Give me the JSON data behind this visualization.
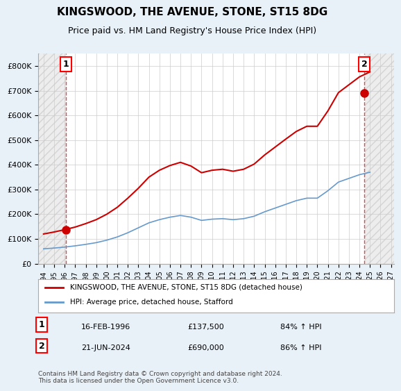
{
  "title": "KINGSWOOD, THE AVENUE, STONE, ST15 8DG",
  "subtitle": "Price paid vs. HM Land Registry's House Price Index (HPI)",
  "legend_line1": "KINGSWOOD, THE AVENUE, STONE, ST15 8DG (detached house)",
  "legend_line2": "HPI: Average price, detached house, Stafford",
  "annotation1_label": "1",
  "annotation1_date": "16-FEB-1996",
  "annotation1_price": "£137,500",
  "annotation1_hpi": "84% ↑ HPI",
  "annotation2_label": "2",
  "annotation2_date": "21-JUN-2024",
  "annotation2_price": "£690,000",
  "annotation2_hpi": "86% ↑ HPI",
  "footer": "Contains HM Land Registry data © Crown copyright and database right 2024.\nThis data is licensed under the Open Government Licence v3.0.",
  "red_line_color": "#cc0000",
  "blue_line_color": "#6699cc",
  "hatch_color": "#cccccc",
  "background_color": "#e8f0f8",
  "plot_bg_color": "#ffffff",
  "ylim": [
    0,
    850000
  ],
  "yticks": [
    0,
    100000,
    200000,
    300000,
    400000,
    500000,
    600000,
    700000,
    800000
  ],
  "ytick_labels": [
    "£0",
    "£100K",
    "£200K",
    "£300K",
    "£400K",
    "£500K",
    "£600K",
    "£700K",
    "£800K"
  ],
  "xmin_year": 1994,
  "xmax_year": 2027,
  "xticks": [
    1994,
    1995,
    1996,
    1997,
    1998,
    1999,
    2000,
    2001,
    2002,
    2003,
    2004,
    2005,
    2006,
    2007,
    2008,
    2009,
    2010,
    2011,
    2012,
    2013,
    2014,
    2015,
    2016,
    2017,
    2018,
    2019,
    2020,
    2021,
    2022,
    2023,
    2024,
    2025,
    2026,
    2027
  ],
  "sale1_year": 1996.12,
  "sale1_price": 137500,
  "sale2_year": 2024.47,
  "sale2_price": 690000,
  "hpi_years": [
    1994,
    1995,
    1996,
    1997,
    1998,
    1999,
    2000,
    2001,
    2002,
    2003,
    2004,
    2005,
    2006,
    2007,
    2008,
    2009,
    2010,
    2011,
    2012,
    2013,
    2014,
    2015,
    2016,
    2017,
    2018,
    2019,
    2020,
    2021,
    2022,
    2023,
    2024,
    2025
  ],
  "hpi_values": [
    60000,
    63000,
    67000,
    72000,
    78000,
    85000,
    95000,
    108000,
    125000,
    145000,
    165000,
    178000,
    188000,
    195000,
    188000,
    175000,
    180000,
    182000,
    178000,
    182000,
    192000,
    210000,
    225000,
    240000,
    255000,
    265000,
    265000,
    295000,
    330000,
    345000,
    360000,
    370000
  ],
  "red_years": [
    1994,
    1995,
    1996,
    1997,
    1998,
    1999,
    2000,
    2001,
    2002,
    2003,
    2004,
    2005,
    2006,
    2007,
    2008,
    2009,
    2010,
    2011,
    2012,
    2013,
    2014,
    2015,
    2016,
    2017,
    2018,
    2019,
    2020,
    2021,
    2022,
    2023,
    2024,
    2025
  ],
  "red_values": [
    120000,
    128000,
    137500,
    148000,
    162000,
    178000,
    200000,
    228000,
    265000,
    305000,
    350000,
    378000,
    397000,
    410000,
    395000,
    368000,
    378000,
    382000,
    374000,
    382000,
    403000,
    440000,
    472000,
    504000,
    535000,
    556000,
    556000,
    618000,
    692000,
    724000,
    756000,
    776000
  ],
  "future_start_year": 2024.5,
  "hatch_end_year": 1996.12
}
